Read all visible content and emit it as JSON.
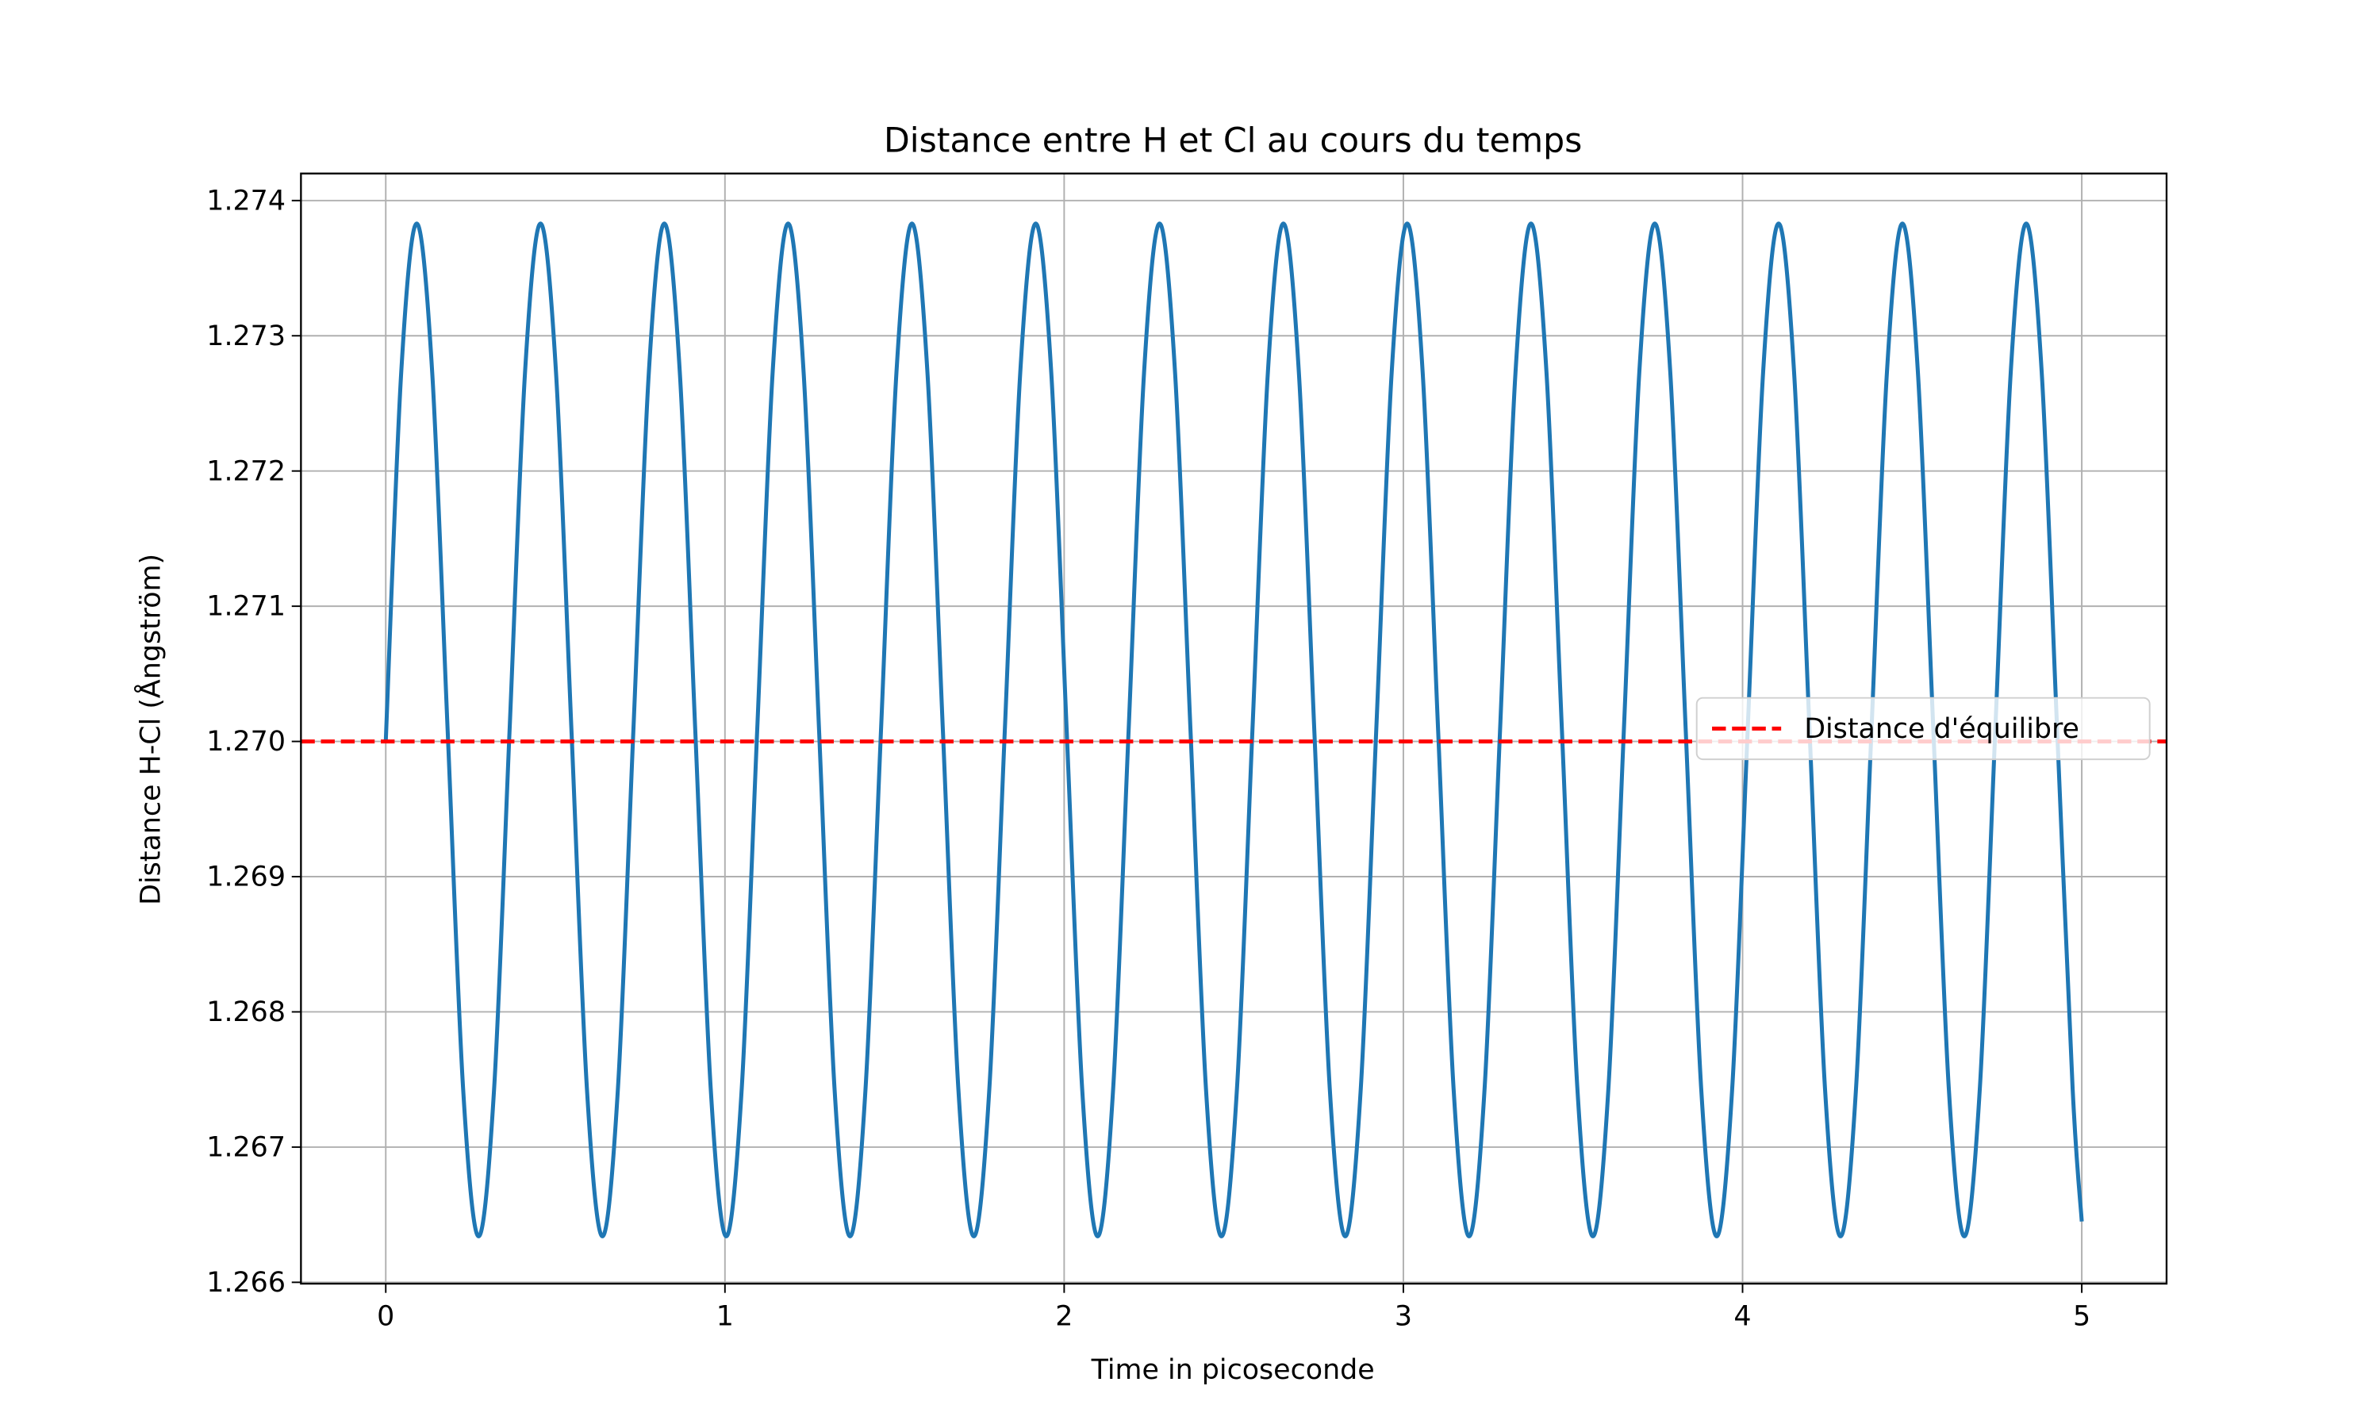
{
  "chart_data": {
    "type": "line",
    "title": "Distance entre H et Cl au cours du temps",
    "xlabel": "Time in picoseconde",
    "ylabel": "Distance H-Cl (Ångström)",
    "xlim": [
      -0.25,
      5.25
    ],
    "ylim": [
      1.26599,
      1.2742
    ],
    "xticks": [
      0,
      1,
      2,
      3,
      4,
      5
    ],
    "yticks": [
      1.266,
      1.267,
      1.268,
      1.269,
      {
        "value": 1.27,
        "label": "1.270"
      },
      1.271,
      1.272,
      1.273,
      1.274
    ],
    "grid": true,
    "legend_position": "center right",
    "x": [
      0,
      0.0456,
      0.0913,
      0.1369,
      0.1825,
      0.2281,
      0.2738,
      0.3194,
      0.365,
      0.4106,
      0.4563,
      0.5019,
      0.5475,
      0.5931,
      0.6388,
      0.6844,
      0.73,
      0.7756,
      0.8213,
      0.8669,
      0.9125,
      0.9581,
      1.0038,
      1.0494,
      1.095,
      1.1406,
      1.1863,
      1.2319,
      1.2775,
      1.3231,
      1.3688,
      1.4144,
      1.46,
      1.5056,
      1.5513,
      1.5969,
      1.6425,
      1.6881,
      1.7338,
      1.7794,
      1.825,
      1.8706,
      1.9163,
      1.9619,
      2.0075,
      2.0531,
      2.0988,
      2.1444,
      2.19,
      2.2356,
      2.2813,
      2.3269,
      2.3725,
      2.4181,
      2.4638,
      2.5094,
      2.555,
      2.6006,
      2.6463,
      2.6919,
      2.7375,
      2.7831,
      2.8288,
      2.8744,
      2.92,
      2.9656,
      3.0113,
      3.0569,
      3.1025,
      3.1481,
      3.1938,
      3.2394,
      3.285,
      3.3306,
      3.3763,
      3.4219,
      3.4675,
      3.5131,
      3.5588,
      3.6044,
      3.65,
      3.6956,
      3.7413,
      3.7869,
      3.8325,
      3.8781,
      3.9238,
      3.9694,
      4.015,
      4.0606,
      4.1063,
      4.1519,
      4.1975,
      4.2431,
      4.2888,
      4.3344,
      4.38,
      4.4256,
      4.4713,
      4.5169,
      4.5625,
      4.6081,
      4.6538,
      4.6994,
      4.745,
      4.7906,
      4.8363,
      4.8819,
      4.9275,
      4.9731,
      5.0
    ],
    "series": [
      {
        "color": "#1f77b4",
        "values": [
          1.27,
          1.27273,
          1.27383,
          1.27273,
          1.27008,
          1.26743,
          1.26634,
          1.26743,
          1.27008,
          1.27273,
          1.27383,
          1.27273,
          1.27008,
          1.26743,
          1.26634,
          1.26743,
          1.27008,
          1.27273,
          1.27383,
          1.27273,
          1.27008,
          1.26743,
          1.26634,
          1.26743,
          1.27008,
          1.27273,
          1.27383,
          1.27273,
          1.27008,
          1.26743,
          1.26634,
          1.26743,
          1.27008,
          1.27273,
          1.27383,
          1.27273,
          1.27008,
          1.26743,
          1.26634,
          1.26743,
          1.27008,
          1.27273,
          1.27383,
          1.27273,
          1.27008,
          1.26743,
          1.26634,
          1.26743,
          1.27008,
          1.27273,
          1.27383,
          1.27273,
          1.27008,
          1.26743,
          1.26634,
          1.26743,
          1.27008,
          1.27273,
          1.27383,
          1.27273,
          1.27008,
          1.26743,
          1.26634,
          1.26743,
          1.27008,
          1.27273,
          1.27383,
          1.27273,
          1.27008,
          1.26743,
          1.26634,
          1.26743,
          1.27008,
          1.27273,
          1.27383,
          1.27273,
          1.27008,
          1.26743,
          1.26634,
          1.26743,
          1.27008,
          1.27273,
          1.27383,
          1.27273,
          1.27008,
          1.26743,
          1.26634,
          1.26743,
          1.27008,
          1.27273,
          1.27383,
          1.27273,
          1.27008,
          1.26743,
          1.26634,
          1.26743,
          1.27008,
          1.27273,
          1.27383,
          1.27273,
          1.27008,
          1.26743,
          1.26634,
          1.26743,
          1.27008,
          1.27273,
          1.27383,
          1.27273,
          1.27008,
          1.26743,
          1.26645
        ]
      }
    ],
    "hline": {
      "name": "Distance d'équilibre",
      "color": "#ff0000",
      "value": 1.27,
      "style": "dashed"
    }
  }
}
